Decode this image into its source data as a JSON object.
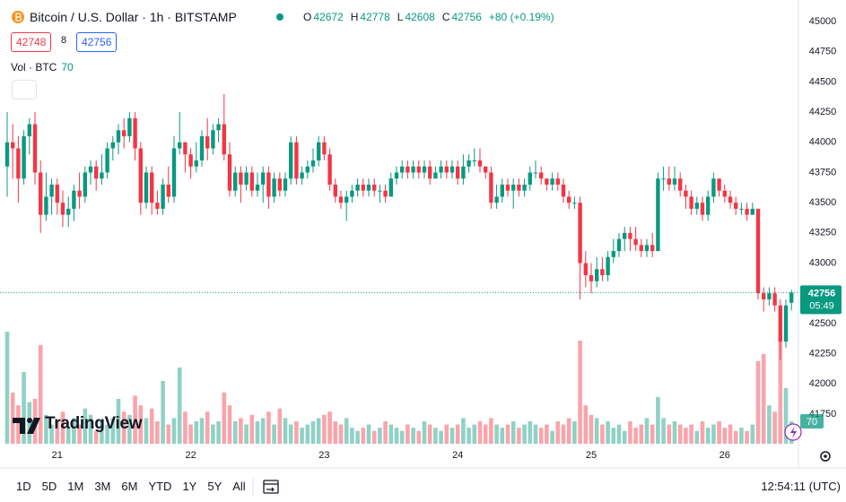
{
  "chart_data": {
    "type": "candlestick",
    "title": "Bitcoin / U.S. Dollar · 1h · BITSTAMP",
    "ohlc_names": [
      "O",
      "H",
      "L",
      "C"
    ],
    "change": "+80 (+0.19%)",
    "bid": 42748,
    "spread": 8,
    "ask": 42756,
    "volume_name": "Vol · BTC",
    "countdown": "05:49",
    "logo": "TradingView",
    "periods": [
      "1D",
      "5D",
      "1M",
      "3M",
      "6M",
      "YTD",
      "1Y",
      "5Y",
      "All"
    ],
    "clock": "12:54:11 (UTC)",
    "up_color": "#089981",
    "down_color": "#f23645",
    "grid": false,
    "ylim": [
      41505,
      45141
    ],
    "yticks": [
      41750,
      42000,
      42250,
      42500,
      42750,
      43000,
      43250,
      43500,
      43750,
      44000,
      44250,
      44500,
      44750,
      45000
    ],
    "y2lim": [
      0,
      1372
    ],
    "categories": [
      null,
      null,
      null,
      null,
      null,
      null,
      null,
      null,
      null,
      "21",
      null,
      null,
      null,
      null,
      null,
      null,
      null,
      null,
      null,
      null,
      null,
      null,
      null,
      null,
      null,
      null,
      null,
      null,
      null,
      null,
      null,
      null,
      null,
      "22",
      null,
      null,
      null,
      null,
      null,
      null,
      null,
      null,
      null,
      null,
      null,
      null,
      null,
      null,
      null,
      null,
      null,
      null,
      null,
      null,
      null,
      null,
      null,
      "23",
      null,
      null,
      null,
      null,
      null,
      null,
      null,
      null,
      null,
      null,
      null,
      null,
      null,
      null,
      null,
      null,
      null,
      null,
      null,
      null,
      null,
      null,
      null,
      "24",
      null,
      null,
      null,
      null,
      null,
      null,
      null,
      null,
      null,
      null,
      null,
      null,
      null,
      null,
      null,
      null,
      null,
      null,
      null,
      null,
      null,
      null,
      null,
      "25",
      null,
      null,
      null,
      null,
      null,
      null,
      null,
      null,
      null,
      null,
      null,
      null,
      null,
      null,
      null,
      null,
      null,
      null,
      null,
      null,
      null,
      null,
      null,
      "26",
      null,
      null,
      null,
      null,
      null,
      null,
      null,
      null,
      null,
      null,
      null,
      null
    ],
    "open": [
      43800,
      44000,
      43950,
      43700,
      44050,
      44150,
      43750,
      43400,
      43550,
      43650,
      43500,
      43400,
      43450,
      43600,
      43550,
      43750,
      43800,
      43700,
      43750,
      43950,
      44000,
      44100,
      44050,
      44200,
      43950,
      43500,
      43750,
      43500,
      43450,
      43650,
      43550,
      43950,
      44000,
      43900,
      43800,
      43850,
      44050,
      43950,
      44100,
      44150,
      43900,
      43600,
      43750,
      43650,
      43750,
      43600,
      43650,
      43750,
      43550,
      43700,
      43600,
      43700,
      44000,
      43700,
      43750,
      43800,
      43850,
      44000,
      43900,
      43650,
      43550,
      43500,
      43550,
      43600,
      43650,
      43600,
      43650,
      43600,
      43600,
      43550,
      43700,
      43750,
      43800,
      43750,
      43800,
      43750,
      43800,
      43700,
      43750,
      43800,
      43750,
      43800,
      43700,
      43800,
      43850,
      43850,
      43800,
      43750,
      43500,
      43550,
      43650,
      43600,
      43650,
      43600,
      43650,
      43750,
      43750,
      43700,
      43650,
      43700,
      43650,
      43550,
      43500,
      43500,
      43000,
      42900,
      42850,
      42950,
      42900,
      43050,
      43100,
      43200,
      43250,
      43200,
      43150,
      43100,
      43150,
      43100,
      43700,
      43700,
      43650,
      43700,
      43600,
      43550,
      43450,
      43500,
      43400,
      43550,
      43700,
      43600,
      43550,
      43500,
      43450,
      43450,
      43400,
      43450,
      42750,
      42700,
      42750,
      42650,
      42350,
      42672
    ],
    "high": [
      44250,
      44150,
      44050,
      44100,
      44200,
      44250,
      43850,
      43750,
      43700,
      43700,
      43600,
      43550,
      43650,
      43750,
      43800,
      43850,
      43850,
      43900,
      44000,
      44050,
      44150,
      44200,
      44250,
      44250,
      44000,
      43800,
      43800,
      43600,
      43700,
      43800,
      44050,
      44250,
      44000,
      43950,
      44000,
      44100,
      44200,
      44150,
      44200,
      44400,
      44000,
      43800,
      43800,
      43800,
      43800,
      43750,
      43800,
      43800,
      43750,
      43750,
      43750,
      44050,
      44050,
      43800,
      43850,
      43950,
      44050,
      44050,
      43950,
      43700,
      43600,
      43600,
      43650,
      43700,
      43700,
      43700,
      43700,
      43650,
      43650,
      43750,
      43800,
      43850,
      43850,
      43850,
      43850,
      43850,
      43850,
      43800,
      43850,
      43850,
      43850,
      43850,
      43900,
      43900,
      43950,
      43950,
      43800,
      43800,
      43650,
      43700,
      43700,
      43700,
      43700,
      43700,
      43800,
      43850,
      43800,
      43700,
      43750,
      43750,
      43700,
      43600,
      43550,
      43550,
      43100,
      43000,
      43050,
      43050,
      43100,
      43200,
      43250,
      43300,
      43300,
      43300,
      43200,
      43200,
      43250,
      43750,
      43800,
      43800,
      43800,
      43750,
      43650,
      43600,
      43550,
      43550,
      43600,
      43750,
      43700,
      43650,
      43600,
      43550,
      43500,
      43500,
      43500,
      43450,
      42800,
      42800,
      42800,
      42700,
      42700,
      42778
    ],
    "low": [
      43550,
      43700,
      43500,
      43650,
      43900,
      43650,
      43250,
      43350,
      43400,
      43400,
      43300,
      43300,
      43350,
      43450,
      43500,
      43650,
      43600,
      43650,
      43700,
      43850,
      43900,
      43950,
      44000,
      43850,
      43400,
      43450,
      43400,
      43400,
      43400,
      43500,
      43500,
      43900,
      43750,
      43700,
      43750,
      43800,
      43850,
      43900,
      44000,
      43850,
      43550,
      43550,
      43500,
      43600,
      43550,
      43550,
      43500,
      43450,
      43500,
      43550,
      43550,
      43650,
      43650,
      43650,
      43700,
      43750,
      43800,
      43850,
      43600,
      43500,
      43450,
      43350,
      43500,
      43550,
      43550,
      43550,
      43550,
      43500,
      43500,
      43550,
      43650,
      43700,
      43700,
      43700,
      43700,
      43700,
      43650,
      43700,
      43700,
      43700,
      43700,
      43650,
      43650,
      43750,
      43800,
      43750,
      43700,
      43450,
      43450,
      43500,
      43550,
      43450,
      43550,
      43550,
      43600,
      43700,
      43650,
      43600,
      43600,
      43600,
      43500,
      43450,
      43450,
      42700,
      42800,
      42750,
      42800,
      42850,
      42850,
      43000,
      43050,
      43100,
      43100,
      43100,
      43050,
      43050,
      43050,
      43100,
      43600,
      43600,
      43600,
      43550,
      43450,
      43400,
      43400,
      43350,
      43350,
      43500,
      43550,
      43500,
      43450,
      43400,
      43400,
      43350,
      43400,
      42700,
      42600,
      42650,
      42600,
      42200,
      42300,
      42608
    ],
    "close": [
      44000,
      43950,
      43700,
      44050,
      44150,
      43750,
      43400,
      43550,
      43650,
      43500,
      43400,
      43450,
      43600,
      43550,
      43750,
      43800,
      43700,
      43750,
      43950,
      44000,
      44100,
      44050,
      44200,
      43950,
      43500,
      43750,
      43500,
      43450,
      43650,
      43550,
      43950,
      44000,
      43900,
      43800,
      43850,
      44050,
      43950,
      44100,
      44150,
      43900,
      43600,
      43750,
      43650,
      43750,
      43600,
      43650,
      43750,
      43550,
      43700,
      43600,
      43700,
      44000,
      43700,
      43750,
      43800,
      43850,
      44000,
      43900,
      43650,
      43550,
      43500,
      43550,
      43600,
      43650,
      43600,
      43650,
      43600,
      43600,
      43550,
      43700,
      43750,
      43800,
      43750,
      43800,
      43750,
      43800,
      43700,
      43750,
      43800,
      43750,
      43800,
      43700,
      43800,
      43850,
      43850,
      43800,
      43750,
      43500,
      43550,
      43650,
      43600,
      43650,
      43600,
      43650,
      43750,
      43750,
      43700,
      43650,
      43700,
      43650,
      43550,
      43500,
      43500,
      43000,
      42900,
      42850,
      42950,
      42900,
      43050,
      43100,
      43200,
      43250,
      43200,
      43150,
      43100,
      43150,
      43100,
      43700,
      43700,
      43650,
      43700,
      43600,
      43550,
      43450,
      43500,
      43400,
      43550,
      43700,
      43600,
      43550,
      43500,
      43450,
      43450,
      43400,
      43450,
      42750,
      42700,
      42750,
      42650,
      42350,
      42650,
      42756
    ],
    "volume": {
      "axis": "y2",
      "values": [
        350,
        160,
        120,
        224,
        130,
        140,
        308,
        90,
        60,
        70,
        100,
        50,
        80,
        60,
        110,
        90,
        40,
        70,
        60,
        80,
        140,
        100,
        90,
        150,
        120,
        80,
        110,
        70,
        196,
        60,
        80,
        238,
        100,
        60,
        70,
        80,
        100,
        60,
        70,
        160,
        120,
        70,
        80,
        60,
        90,
        70,
        80,
        100,
        60,
        110,
        80,
        60,
        70,
        50,
        60,
        70,
        80,
        90,
        100,
        70,
        60,
        80,
        50,
        40,
        50,
        60,
        40,
        50,
        70,
        60,
        50,
        40,
        60,
        50,
        40,
        70,
        60,
        50,
        40,
        60,
        50,
        60,
        80,
        50,
        60,
        70,
        60,
        80,
        60,
        50,
        60,
        70,
        50,
        60,
        70,
        60,
        50,
        60,
        40,
        70,
        60,
        80,
        70,
        322,
        120,
        90,
        80,
        60,
        70,
        50,
        60,
        40,
        70,
        50,
        60,
        80,
        60,
        146,
        80,
        60,
        70,
        60,
        50,
        60,
        40,
        70,
        50,
        60,
        70,
        50,
        60,
        40,
        50,
        40,
        60,
        258,
        280,
        120,
        100,
        322,
        174,
        70
      ]
    }
  }
}
